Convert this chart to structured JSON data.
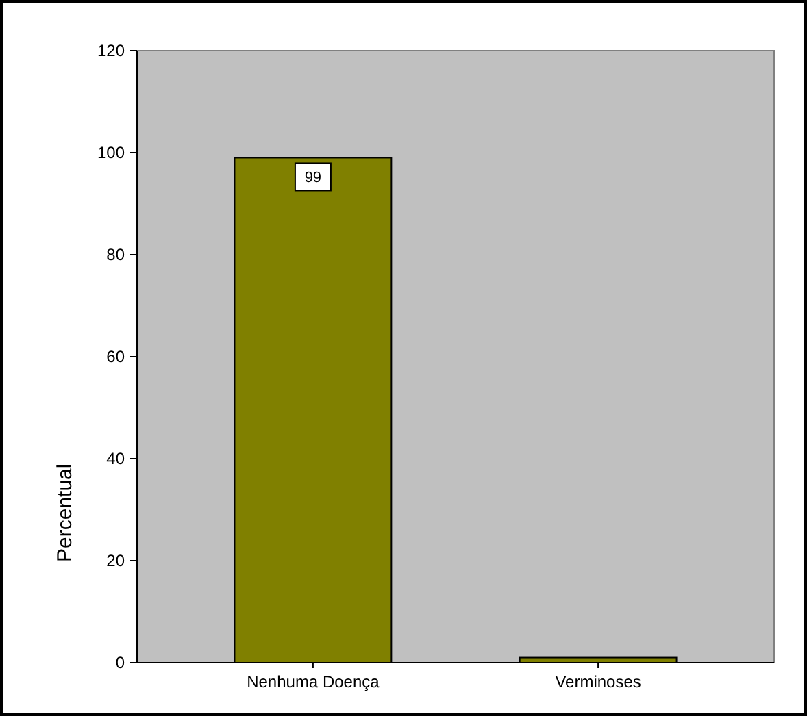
{
  "chart_data": {
    "type": "bar",
    "ylabel": "Percentual",
    "categories": [
      "Nenhuma Doença",
      "Verminoses"
    ],
    "values": [
      99,
      1
    ],
    "color": "#808000",
    "value_labels": [
      "99",
      null
    ],
    "ylim": [
      0,
      120
    ],
    "yticks": [
      0,
      20,
      40,
      60,
      80,
      100,
      120
    ],
    "grid": false
  }
}
